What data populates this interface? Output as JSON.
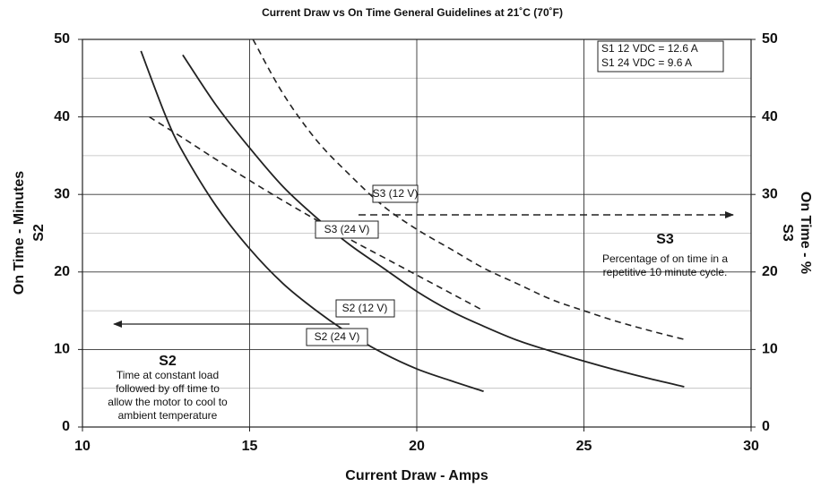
{
  "chart_data": {
    "type": "line",
    "title": "Current Draw vs On Time General Guidelines at 21˚C (70˚F)",
    "x_label": "Current Draw - Amps",
    "y_label": "On Time - Minutes",
    "y_sublabel": "S2",
    "y2_label": "On Time - %",
    "y2_sublabel": "S3",
    "xlim": [
      10,
      30
    ],
    "xticks": [
      10,
      15,
      20,
      25,
      30
    ],
    "ylim": [
      0,
      50
    ],
    "yticks": [
      0,
      10,
      20,
      30,
      40,
      50
    ],
    "minor_yticks": [
      5,
      15,
      25,
      35,
      45
    ],
    "y2lim": [
      0,
      50
    ],
    "y2ticks": [
      0,
      10,
      20,
      30,
      40,
      50
    ],
    "grid": true,
    "s1_notes": [
      "S1  12 VDC = 12.6 A",
      "S1  24 VDC =   9.6 A"
    ],
    "s2_note": {
      "heading": "S2",
      "lines": [
        "Time at constant load",
        "followed by off time to",
        "allow the motor to cool to",
        "ambient temperature"
      ]
    },
    "s3_note": {
      "heading": "S3",
      "lines": [
        "Percentage of on time in a",
        "repetitive 10 minute cycle."
      ]
    },
    "series": [
      {
        "name": "S2 (12 V)",
        "color": "#222222",
        "dash": false,
        "x": [
          13,
          14,
          15,
          16,
          17,
          18,
          19,
          20,
          21,
          22,
          23,
          24,
          25,
          26,
          27,
          28
        ],
        "values": [
          48,
          41.5,
          36,
          31,
          27,
          23.5,
          20.5,
          17.5,
          15,
          13,
          11.2,
          9.8,
          8.5,
          7.3,
          6.2,
          5.2
        ]
      },
      {
        "name": "S2 (24 V)",
        "color": "#222222",
        "dash": false,
        "x": [
          11.75,
          12.5,
          13,
          14,
          15,
          16,
          17,
          18,
          19,
          20,
          21,
          22
        ],
        "values": [
          48.5,
          40,
          35.5,
          28.5,
          23,
          18.5,
          15,
          12,
          9.5,
          7.5,
          6,
          4.6
        ]
      },
      {
        "name": "S3 (12 V)",
        "color": "#222222",
        "dash": true,
        "axis": "y2",
        "x": [
          15.1,
          16,
          17,
          18,
          19,
          20,
          21,
          22,
          23,
          24,
          25,
          26,
          27,
          28
        ],
        "values": [
          50,
          43,
          37,
          32.5,
          28.5,
          25.5,
          23,
          20.5,
          18.5,
          16.5,
          15,
          13.6,
          12.4,
          11.3
        ]
      },
      {
        "name": "S3 (24 V)",
        "color": "#222222",
        "dash": true,
        "axis": "y2",
        "x": [
          12,
          13,
          14,
          15,
          16,
          17,
          18,
          19,
          20,
          21,
          22
        ],
        "values": [
          40,
          37.3,
          34.5,
          31.8,
          29.2,
          26.7,
          24.2,
          21.9,
          19.6,
          17.3,
          15
        ]
      }
    ]
  }
}
